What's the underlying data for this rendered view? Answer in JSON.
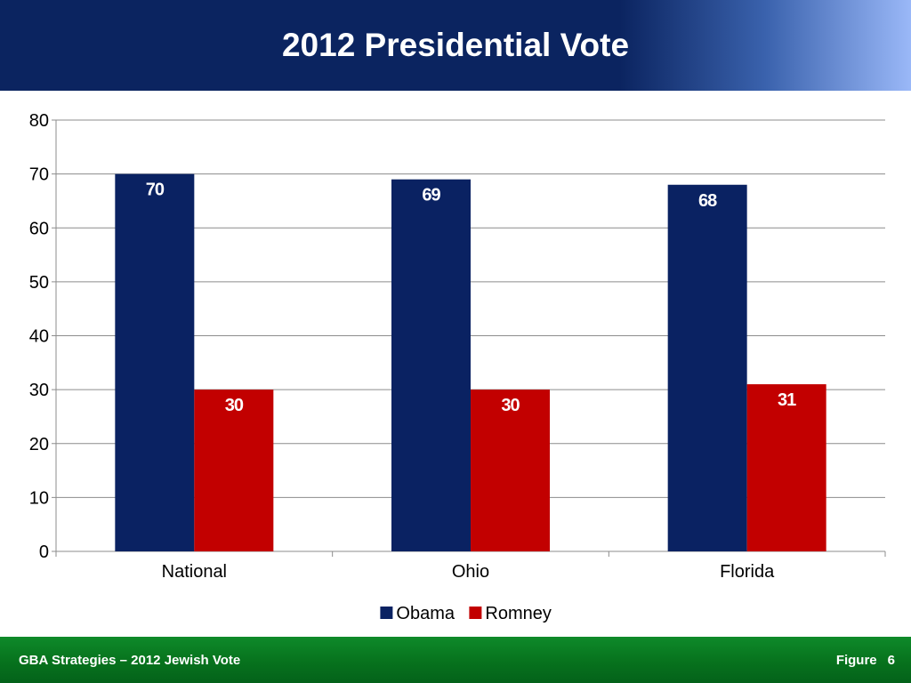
{
  "header": {
    "title": "2012 Presidential Vote"
  },
  "footer": {
    "left_text": "GBA Strategies – 2012 Jewish Vote",
    "figure_label": "Figure",
    "figure_number": "6"
  },
  "chart_data": {
    "type": "bar",
    "title": "",
    "xlabel": "",
    "ylabel": "",
    "categories": [
      "National",
      "Ohio",
      "Florida"
    ],
    "series": [
      {
        "name": "Obama",
        "values": [
          70,
          69,
          68
        ],
        "color": "#0a2262"
      },
      {
        "name": "Romney",
        "values": [
          30,
          30,
          31
        ],
        "color": "#c20000"
      }
    ],
    "ylim": [
      0,
      80
    ],
    "yticks": [
      0,
      10,
      20,
      30,
      40,
      50,
      60,
      70,
      80
    ],
    "grid": true,
    "legend_position": "bottom",
    "data_labels": true
  }
}
